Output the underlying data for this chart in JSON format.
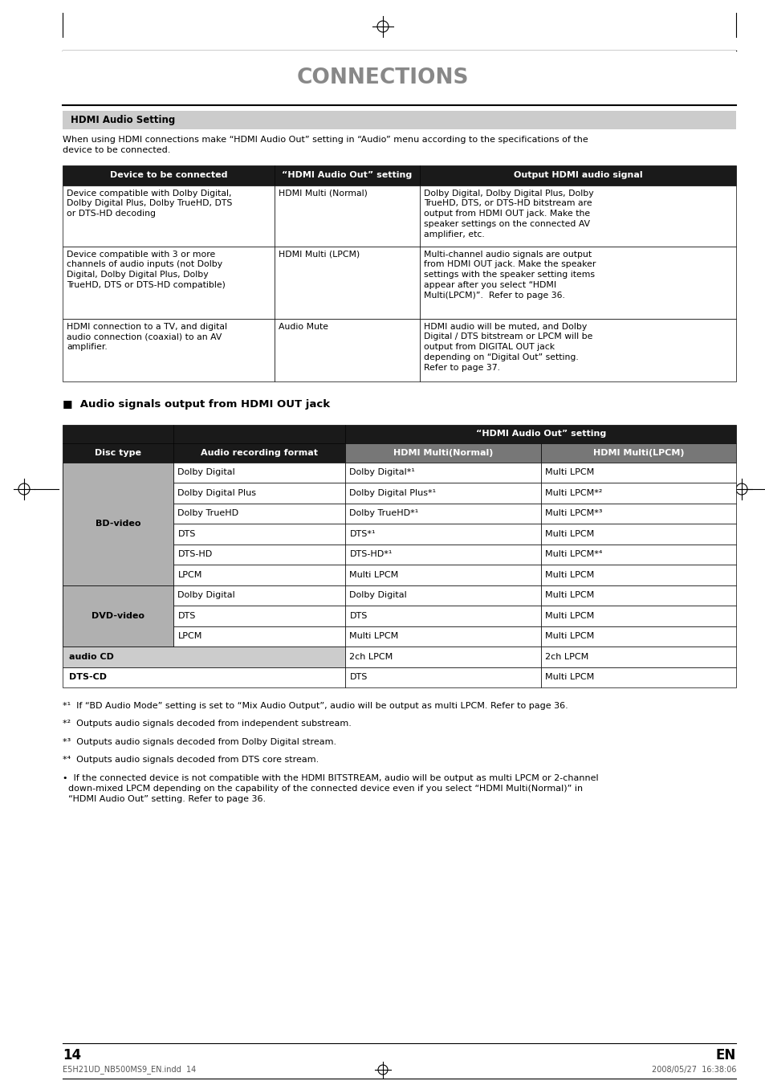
{
  "page_title": "CONNECTIONS",
  "section1_header": "HDMI Audio Setting",
  "section1_intro": "When using HDMI connections make “HDMI Audio Out” setting in “Audio” menu according to the specifications of the device to be connected.",
  "table1_headers": [
    "Device to be connected",
    "“HDMI Audio Out” setting",
    "Output HDMI audio signal"
  ],
  "table1_rows": [
    [
      "Device compatible with Dolby Digital,\nDolby Digital Plus, Dolby TrueHD, DTS\nor DTS-HD decoding",
      "HDMI Multi (Normal)",
      "Dolby Digital, Dolby Digital Plus, Dolby\nTrueHD, DTS, or DTS-HD bitstream are\noutput from HDMI OUT jack. Make the\nspeaker settings on the connected AV\namplifier, etc."
    ],
    [
      "Device compatible with 3 or more\nchannels of audio inputs (not Dolby\nDigital, Dolby Digital Plus, Dolby\nTrueHD, DTS or DTS-HD compatible)",
      "HDMI Multi (LPCM)",
      "Multi-channel audio signals are output\nfrom HDMI OUT jack. Make the speaker\nsettings with the speaker setting items\nappear after you select “HDMI\nMulti(LPCM)”.  Refer to page 36."
    ],
    [
      "HDMI connection to a TV, and digital\naudio connection (coaxial) to an AV\namplifier.",
      "Audio Mute",
      "HDMI audio will be muted, and Dolby\nDigital / DTS bitstream or LPCM will be\noutput from DIGITAL OUT jack\ndepending on “Digital Out” setting.\nRefer to page 37."
    ]
  ],
  "section2_header": "■  Audio signals output from HDMI OUT jack",
  "table2_rows": [
    [
      "BD-video",
      "Dolby Digital",
      "Dolby Digital*¹",
      "Multi LPCM"
    ],
    [
      "BD-video",
      "Dolby Digital Plus",
      "Dolby Digital Plus*¹",
      "Multi LPCM*²"
    ],
    [
      "BD-video",
      "Dolby TrueHD",
      "Dolby TrueHD*¹",
      "Multi LPCM*³"
    ],
    [
      "BD-video",
      "DTS",
      "DTS*¹",
      "Multi LPCM"
    ],
    [
      "BD-video",
      "DTS-HD",
      "DTS-HD*¹",
      "Multi LPCM*⁴"
    ],
    [
      "BD-video",
      "LPCM",
      "Multi LPCM",
      "Multi LPCM"
    ],
    [
      "DVD-video",
      "Dolby Digital",
      "Dolby Digital",
      "Multi LPCM"
    ],
    [
      "DVD-video",
      "DTS",
      "DTS",
      "Multi LPCM"
    ],
    [
      "DVD-video",
      "LPCM",
      "Multi LPCM",
      "Multi LPCM"
    ],
    [
      "audio CD",
      "",
      "2ch LPCM",
      "2ch LPCM"
    ],
    [
      "DTS-CD",
      "",
      "DTS",
      "Multi LPCM"
    ]
  ],
  "footnotes": [
    "*¹  If “BD Audio Mode” setting is set to “Mix Audio Output”, audio will be output as multi LPCM. Refer to page 36.",
    "*²  Outputs audio signals decoded from independent substream.",
    "*³  Outputs audio signals decoded from Dolby Digital stream.",
    "*⁴  Outputs audio signals decoded from DTS core stream.",
    "•  If the connected device is not compatible with the HDMI BITSTREAM, audio will be output as multi LPCM or 2-channel\n  down-mixed LPCM depending on the capability of the connected device even if you select “HDMI Multi(Normal)” in\n  “HDMI Audio Out” setting. Refer to page 36."
  ],
  "page_number": "14",
  "footer_left": "E5H21UD_NB500MS9_EN.indd  14",
  "footer_right": "2008/05/27  16:38:06",
  "title_color": "#888888",
  "bg_color": "#ffffff",
  "table_header_bg": "#1a1a1a",
  "table_header_fg": "#ffffff",
  "table_row_bg": "#ffffff",
  "section_header_bg": "#cccccc",
  "table2_sub_header_bg": "#777777",
  "disc_type_bg": "#b0b0b0",
  "audio_cd_bg": "#cccccc",
  "dts_cd_bg": "#ffffff"
}
